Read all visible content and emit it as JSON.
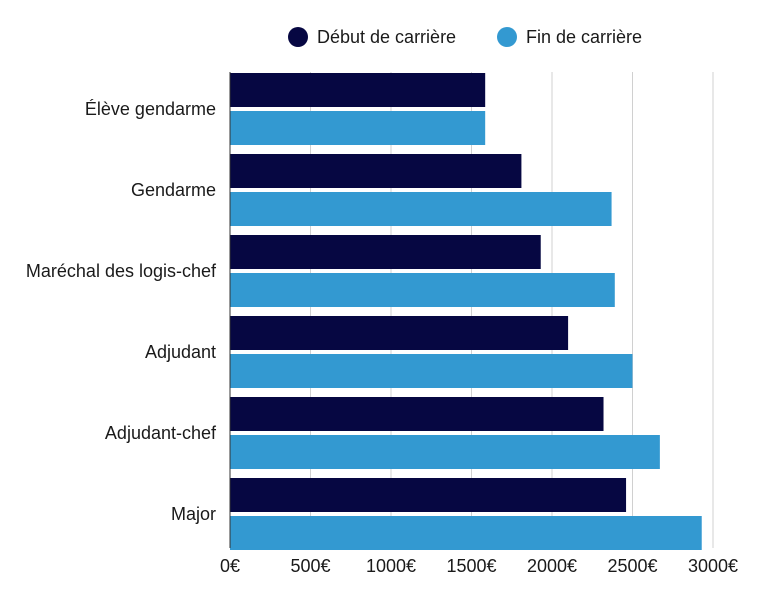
{
  "chart_data": {
    "type": "bar",
    "orientation": "horizontal",
    "categories": [
      "Élève gendarme",
      "Gendarme",
      "Maréchal des logis-chef",
      "Adjudant",
      "Adjudant-chef",
      "Major"
    ],
    "series": [
      {
        "name": "Début de carrière",
        "color": "#060742",
        "values": [
          1585,
          1810,
          1930,
          2100,
          2320,
          2460
        ]
      },
      {
        "name": "Fin de carrière",
        "color": "#3399d1",
        "values": [
          1585,
          2370,
          2390,
          2500,
          2670,
          2930
        ]
      }
    ],
    "xlim": [
      0,
      3000
    ],
    "xticks": [
      {
        "value": 0,
        "label": "0€"
      },
      {
        "value": 500,
        "label": "500€"
      },
      {
        "value": 1000,
        "label": "1000€"
      },
      {
        "value": 1500,
        "label": "1500€"
      },
      {
        "value": 2000,
        "label": "2000€"
      },
      {
        "value": 2500,
        "label": "2500€"
      },
      {
        "value": 3000,
        "label": "3000€"
      }
    ],
    "grid": true,
    "legend_position": "top-center",
    "title": "",
    "xlabel": "",
    "ylabel": ""
  }
}
